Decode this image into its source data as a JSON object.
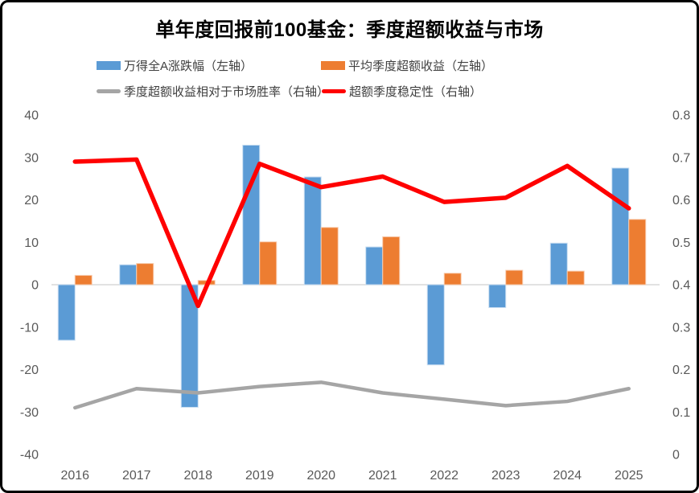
{
  "chart": {
    "title": "单年度回报前100基金：季度超额收益与市场",
    "legend": [
      {
        "label": "万得全A涨跌幅（左轴）",
        "marker": "bar",
        "color": "#5B9BD5"
      },
      {
        "label": "平均季度超额收益（左轴）",
        "marker": "bar",
        "color": "#ED7D31"
      },
      {
        "label": "季度超额收益相对于市场胜率（右轴）",
        "marker": "line",
        "color": "#A5A5A5"
      },
      {
        "label": "超额季度稳定性（右轴）",
        "marker": "line",
        "color": "#FF0000"
      }
    ]
  },
  "chart_data": {
    "type": "bar",
    "subtype": "combo-bar-line-dual-axis",
    "title": "单年度回报前100基金：季度超额收益与市场",
    "categories": [
      "2016",
      "2017",
      "2018",
      "2019",
      "2020",
      "2021",
      "2022",
      "2023",
      "2024",
      "2025"
    ],
    "series": [
      {
        "name": "万得全A涨跌幅（左轴）",
        "type": "bar",
        "axis": "left",
        "color": "#5B9BD5",
        "values": [
          -13.1,
          4.7,
          -28.9,
          32.9,
          25.4,
          8.9,
          -18.9,
          -5.4,
          9.8,
          27.5
        ]
      },
      {
        "name": "平均季度超额收益（左轴）",
        "type": "bar",
        "axis": "left",
        "color": "#ED7D31",
        "values": [
          2.2,
          5.0,
          1.0,
          10.1,
          13.5,
          11.3,
          2.7,
          3.4,
          3.2,
          15.4
        ]
      },
      {
        "name": "季度超额收益相对于市场胜率（右轴）",
        "type": "line",
        "axis": "right",
        "color": "#A5A5A5",
        "values": [
          0.11,
          0.155,
          0.145,
          0.16,
          0.17,
          0.145,
          0.13,
          0.115,
          0.125,
          0.155
        ]
      },
      {
        "name": "超额季度稳定性（右轴）",
        "type": "line",
        "axis": "right",
        "color": "#FF0000",
        "values": [
          0.69,
          0.695,
          0.35,
          0.685,
          0.63,
          0.655,
          0.595,
          0.605,
          0.68,
          0.58
        ]
      }
    ],
    "left_axis": {
      "min": -40,
      "max": 40,
      "step": 10,
      "tick_labels": [
        "40",
        "30",
        "20",
        "10",
        "0",
        "-10",
        "-20",
        "-30",
        "-40"
      ]
    },
    "right_axis": {
      "min": 0,
      "max": 0.8,
      "step": 0.1,
      "tick_labels": [
        "0.8",
        "0.7",
        "0.6",
        "0.5",
        "0.4",
        "0.3",
        "0.2",
        "0.1",
        "0"
      ]
    },
    "grid": "zero-line-only",
    "legend_position": "top",
    "tick_color": "#595959",
    "zero_line_color": "#D9D9D9"
  }
}
